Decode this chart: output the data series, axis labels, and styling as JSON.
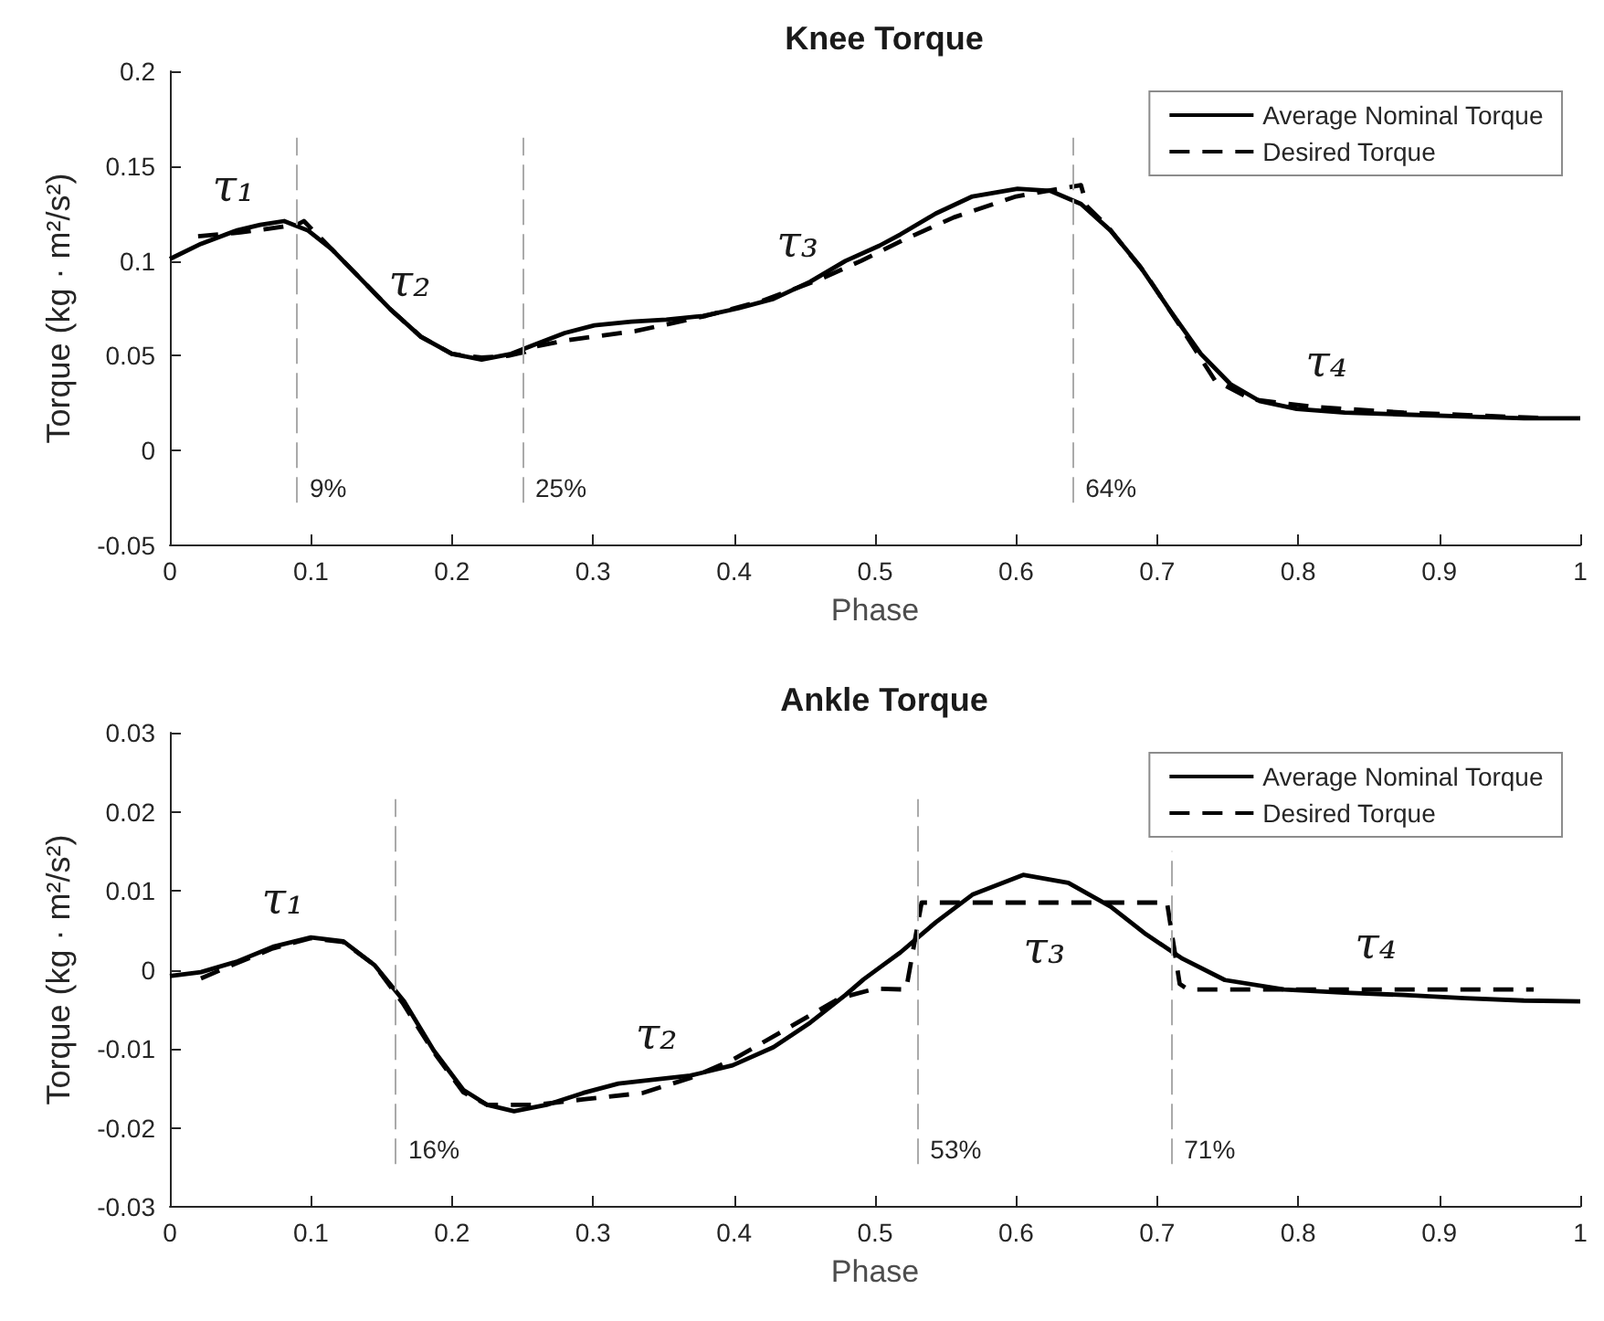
{
  "chart_data": [
    {
      "type": "line",
      "title": "Knee Torque",
      "xlabel": "Phase",
      "ylabel": "Torque (kg · m²/s²)",
      "xlim": [
        0,
        1
      ],
      "xticks": [
        0,
        0.1,
        0.2,
        0.3,
        0.4,
        0.5,
        0.6,
        0.7,
        0.8,
        0.9,
        1
      ],
      "ylim": [
        -0.05,
        0.2
      ],
      "yticks": [
        -0.05,
        0,
        0.05,
        0.1,
        0.15,
        0.2
      ],
      "grid": false,
      "legend": "top right",
      "marker": "none",
      "series": [
        {
          "name": "Average Nominal Torque",
          "color": "#000000",
          "line_style": "solid",
          "x": [
            0,
            0.022,
            0.047,
            0.064,
            0.081,
            0.098,
            0.115,
            0.136,
            0.157,
            0.178,
            0.2,
            0.221,
            0.242,
            0.259,
            0.28,
            0.301,
            0.327,
            0.352,
            0.378,
            0.403,
            0.428,
            0.454,
            0.479,
            0.503,
            0.518,
            0.543,
            0.569,
            0.601,
            0.624,
            0.646,
            0.667,
            0.688,
            0.709,
            0.731,
            0.752,
            0.773,
            0.799,
            0.833,
            0.875,
            0.918,
            0.96,
            1
          ],
          "values": [
            0.101,
            0.109,
            0.116,
            0.119,
            0.121,
            0.116,
            0.106,
            0.09,
            0.074,
            0.06,
            0.051,
            0.048,
            0.051,
            0.056,
            0.062,
            0.066,
            0.068,
            0.069,
            0.071,
            0.075,
            0.08,
            0.089,
            0.1,
            0.108,
            0.114,
            0.125,
            0.134,
            0.138,
            0.137,
            0.13,
            0.116,
            0.097,
            0.074,
            0.051,
            0.035,
            0.026,
            0.022,
            0.02,
            0.019,
            0.018,
            0.017,
            0.017
          ]
        },
        {
          "name": "Desired Torque",
          "color": "#000000",
          "line_style": "dashed",
          "x": [
            0.02,
            0.05,
            0.08,
            0.09,
            0.095,
            0.115,
            0.136,
            0.157,
            0.178,
            0.2,
            0.221,
            0.24,
            0.252,
            0.26,
            0.28,
            0.33,
            0.38,
            0.42,
            0.46,
            0.49,
            0.52,
            0.556,
            0.6,
            0.646,
            0.65,
            0.665,
            0.692,
            0.716,
            0.741,
            0.767,
            0.811,
            0.875,
            0.978
          ],
          "values": [
            0.113,
            0.115,
            0.118,
            0.119,
            0.121,
            0.106,
            0.09,
            0.074,
            0.06,
            0.051,
            0.049,
            0.05,
            0.052,
            0.055,
            0.058,
            0.063,
            0.071,
            0.079,
            0.09,
            0.1,
            0.111,
            0.123,
            0.134,
            0.14,
            0.129,
            0.118,
            0.093,
            0.066,
            0.037,
            0.027,
            0.023,
            0.02,
            0.017
          ]
        }
      ],
      "ref_lines": [
        {
          "axis": "x",
          "value": 0.09,
          "label": "9%",
          "color": "#aaaaaa",
          "line_style": "dashed"
        },
        {
          "axis": "x",
          "value": 0.25,
          "label": "25%",
          "color": "#aaaaaa",
          "line_style": "dashed"
        },
        {
          "axis": "x",
          "value": 0.64,
          "label": "64%",
          "color": "#aaaaaa",
          "line_style": "dashed"
        }
      ],
      "annotations": [
        "τ₁",
        "τ₂",
        "τ₃",
        "τ₄"
      ]
    },
    {
      "type": "line",
      "title": "Ankle Torque",
      "xlabel": "Phase",
      "ylabel": "Torque (kg · m²/s²)",
      "xlim": [
        0,
        1
      ],
      "xticks": [
        0,
        0.1,
        0.2,
        0.3,
        0.4,
        0.5,
        0.6,
        0.7,
        0.8,
        0.9,
        1
      ],
      "ylim": [
        -0.03,
        0.03
      ],
      "yticks": [
        -0.03,
        -0.02,
        -0.01,
        0,
        0.01,
        0.02,
        0.03
      ],
      "grid": false,
      "legend": "top right",
      "marker": "none",
      "series": [
        {
          "name": "Average Nominal Torque",
          "color": "#000000",
          "line_style": "solid",
          "x": [
            0,
            0.022,
            0.047,
            0.073,
            0.1,
            0.123,
            0.145,
            0.166,
            0.187,
            0.208,
            0.225,
            0.244,
            0.267,
            0.293,
            0.318,
            0.344,
            0.369,
            0.399,
            0.428,
            0.454,
            0.479,
            0.492,
            0.505,
            0.518,
            0.543,
            0.569,
            0.605,
            0.637,
            0.667,
            0.692,
            0.718,
            0.748,
            0.79,
            0.833,
            0.875,
            0.918,
            0.96,
            1
          ],
          "values": [
            -0.0008,
            -0.0003,
            0.001,
            0.0029,
            0.0041,
            0.0036,
            0.0006,
            -0.004,
            -0.0102,
            -0.0152,
            -0.0171,
            -0.0179,
            -0.0171,
            -0.0156,
            -0.0144,
            -0.0139,
            -0.0134,
            -0.0121,
            -0.0098,
            -0.0067,
            -0.0032,
            -0.0012,
            0.0005,
            0.0022,
            0.006,
            0.0095,
            0.012,
            0.011,
            0.008,
            0.0045,
            0.0014,
            -0.0013,
            -0.0025,
            -0.0029,
            -0.0032,
            -0.0036,
            -0.0039,
            -0.004
          ]
        },
        {
          "name": "Desired Torque",
          "color": "#000000",
          "line_style": "dashed",
          "x": [
            0.022,
            0.047,
            0.073,
            0.1,
            0.123,
            0.145,
            0.16,
            0.165,
            0.187,
            0.208,
            0.225,
            0.26,
            0.293,
            0.335,
            0.369,
            0.399,
            0.441,
            0.475,
            0.5,
            0.522,
            0.533,
            0.707,
            0.716,
            0.722,
            0.967
          ],
          "values": [
            -0.0011,
            0.0008,
            0.0027,
            0.004,
            0.0035,
            0.0006,
            -0.003,
            -0.0042,
            -0.0104,
            -0.0155,
            -0.0171,
            -0.0171,
            -0.0164,
            -0.0156,
            -0.0137,
            -0.0114,
            -0.0071,
            -0.0036,
            -0.0024,
            -0.0025,
            0.0085,
            0.0085,
            -0.0018,
            -0.0025,
            -0.0025
          ]
        }
      ],
      "ref_lines": [
        {
          "axis": "x",
          "value": 0.16,
          "label": "16%",
          "color": "#aaaaaa",
          "line_style": "dashed"
        },
        {
          "axis": "x",
          "value": 0.53,
          "label": "53%",
          "color": "#aaaaaa",
          "line_style": "dashed"
        },
        {
          "axis": "x",
          "value": 0.71,
          "label": "71%",
          "color": "#aaaaaa",
          "line_style": "dashed"
        }
      ],
      "annotations": [
        "τ₁",
        "τ₂",
        "τ₃",
        "τ₄"
      ]
    }
  ]
}
